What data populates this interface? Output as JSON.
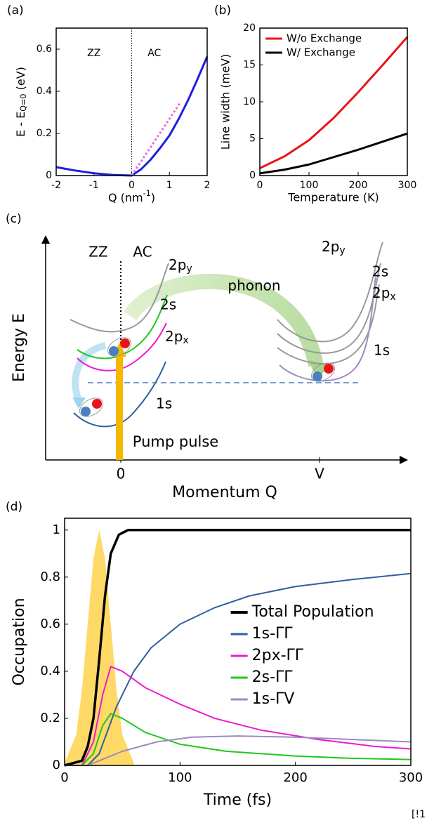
{
  "chart_data": [
    {
      "type": "line",
      "label": "(a)",
      "xlabel": {
        "text": "Q (nm",
        "sup": "-1",
        "unit": ")"
      },
      "ylabel": {
        "text": "E - E",
        "sub": "Q=0",
        "unit": " (eV)"
      },
      "xlim": [
        -2,
        2
      ],
      "xticks": [
        -2,
        -1,
        0,
        1,
        2
      ],
      "ylim": [
        0,
        0.7
      ],
      "yticks": [
        0,
        0.2,
        0.4,
        0.6
      ],
      "annotations": [
        "ZZ",
        "AC"
      ],
      "series": [
        {
          "color": "#1f1fe0",
          "x": [
            -2,
            -1.5,
            -1,
            -0.5,
            0,
            0.25,
            0.5,
            0.75,
            1,
            1.25,
            1.5,
            1.75,
            2
          ],
          "values": [
            0.04,
            0.024,
            0.011,
            0.003,
            0,
            0.03,
            0.075,
            0.13,
            0.19,
            0.27,
            0.36,
            0.46,
            0.565
          ]
        },
        {
          "color": "#e86fd8",
          "dashed": true,
          "x": [
            0,
            1.3
          ],
          "values": [
            0,
            0.35
          ]
        }
      ]
    },
    {
      "type": "line",
      "label": "(b)",
      "xlabel": "Temperature (K)",
      "ylabel": "Line width (meV)",
      "xlim": [
        0,
        300
      ],
      "xticks": [
        0,
        100,
        200,
        300
      ],
      "ylim": [
        0,
        20
      ],
      "yticks": [
        0,
        5,
        10,
        15,
        20
      ],
      "legend": "upper left",
      "series": [
        {
          "name": "W/o Exchange",
          "color": "#e8141a",
          "x": [
            0,
            50,
            100,
            150,
            200,
            250,
            300
          ],
          "values": [
            1.0,
            2.6,
            4.8,
            7.8,
            11.3,
            15.0,
            18.8
          ]
        },
        {
          "name": "W/ Exchange",
          "color": "#000000",
          "x": [
            0,
            50,
            100,
            150,
            200,
            250,
            300
          ],
          "values": [
            0.3,
            0.8,
            1.5,
            2.5,
            3.5,
            4.6,
            5.7
          ]
        }
      ]
    },
    {
      "type": "line",
      "label": "(d)",
      "xlabel": "Time (fs)",
      "ylabel": "Occupation",
      "xlim": [
        0,
        300
      ],
      "xticks": [
        0,
        100,
        200,
        300
      ],
      "ylim": [
        0,
        1.05
      ],
      "yticks": [
        0,
        0.2,
        0.4,
        0.6,
        0.8,
        1
      ],
      "legend": "center right",
      "pulse": {
        "color": "#ffd966",
        "x": [
          0,
          10,
          15,
          20,
          25,
          30,
          35,
          40,
          45,
          50,
          60
        ],
        "values": [
          0.01,
          0.13,
          0.32,
          0.6,
          0.88,
          1,
          0.88,
          0.6,
          0.32,
          0.13,
          0.01
        ]
      },
      "series": [
        {
          "name": "Total Population",
          "color": "#000000",
          "x": [
            0,
            15,
            20,
            25,
            30,
            35,
            40,
            47,
            55,
            300
          ],
          "values": [
            0,
            0.02,
            0.08,
            0.2,
            0.45,
            0.72,
            0.9,
            0.98,
            1,
            1
          ]
        },
        {
          "name": "1s-ΓΓ",
          "color": "#2f5f9e",
          "x": [
            0,
            20,
            30,
            45,
            60,
            75,
            100,
            130,
            160,
            200,
            250,
            300
          ],
          "values": [
            0,
            0,
            0.05,
            0.25,
            0.4,
            0.5,
            0.6,
            0.67,
            0.72,
            0.76,
            0.79,
            0.815
          ]
        },
        {
          "name": "2px-ΓΓ",
          "color": "#ee1ad0",
          "x": [
            0,
            15,
            25,
            33,
            40,
            50,
            70,
            100,
            130,
            170,
            220,
            270,
            300
          ],
          "values": [
            0,
            0,
            0.1,
            0.3,
            0.42,
            0.4,
            0.33,
            0.26,
            0.2,
            0.15,
            0.11,
            0.08,
            0.07
          ]
        },
        {
          "name": "2s-ΓΓ",
          "color": "#1ec81e",
          "x": [
            0,
            15,
            25,
            33,
            40,
            50,
            70,
            100,
            140,
            200,
            250,
            300
          ],
          "values": [
            0,
            0,
            0.05,
            0.17,
            0.22,
            0.2,
            0.14,
            0.09,
            0.06,
            0.04,
            0.03,
            0.025
          ]
        },
        {
          "name": "1s-ΓV",
          "color": "#9b8bc0",
          "x": [
            0,
            20,
            30,
            50,
            80,
            110,
            150,
            200,
            250,
            300
          ],
          "values": [
            0,
            0,
            0.02,
            0.06,
            0.1,
            0.12,
            0.125,
            0.12,
            0.11,
            0.1
          ]
        }
      ]
    }
  ],
  "diagram": {
    "label": "(c)",
    "ylabel": "Energy E",
    "xlabel": "Momentum Q",
    "zz": "ZZ",
    "ac": "AC",
    "phonon": "phonon",
    "pump": "Pump pulse",
    "x0": "0",
    "xv": "V",
    "left": {
      "py": {
        "text": "2p",
        "sub": "y"
      },
      "s2": "2s",
      "px": {
        "text": "2p",
        "sub": "x"
      },
      "s1": "1s"
    },
    "right": {
      "py": {
        "text": "2p",
        "sub": "y"
      },
      "s2": "2s",
      "px": {
        "text": "2p",
        "sub": "x"
      },
      "s1": "1s"
    }
  },
  "footnote": "[!1"
}
